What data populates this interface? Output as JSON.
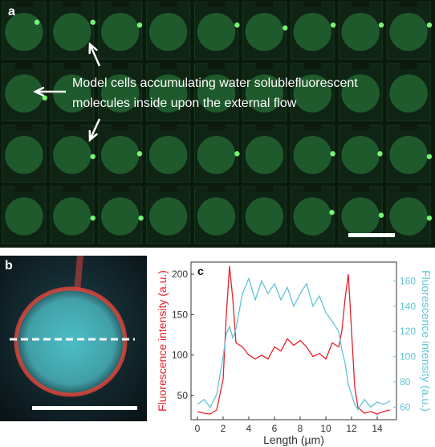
{
  "panel_a": {
    "letter": "a",
    "annotation_line1": "Model cells accumulating water solublefluorescent",
    "annotation_line2": "molecules inside upon the external flow",
    "colors": {
      "background": "#0c1a0e",
      "cell": "#1f5a2c",
      "trap_gap": "#0c1a0e",
      "spot": "#7dff7a",
      "annotation": "#ffffff"
    }
  },
  "panel_b": {
    "letter": "b",
    "colors": {
      "membrane": "#d9443a",
      "interior": "#4fc4cc",
      "dashed_line": "#ffffff",
      "scale_bar": "#ffffff"
    }
  },
  "chart_data": {
    "type": "line",
    "letter": "c",
    "xlabel": "Length (µm)",
    "ylabel_left": "Fluorescence intensity (a.u.)",
    "ylabel_right": "Fluorescence intensity (a.u.)",
    "xlim": [
      -0.5,
      15.5
    ],
    "ylim_left": [
      20,
      215
    ],
    "ylim_right": [
      50,
      175
    ],
    "x_ticks": [
      "0",
      "2",
      "4",
      "6",
      "8",
      "10",
      "12",
      "14"
    ],
    "y_ticks_left": [
      "50",
      "100",
      "150",
      "200"
    ],
    "y_ticks_right": [
      "60",
      "80",
      "100",
      "120",
      "140",
      "160"
    ],
    "grid": false,
    "series": [
      {
        "axis": "left",
        "color": "#e8202a",
        "x": [
          0.0,
          0.5,
          1.0,
          1.5,
          2.0,
          2.25,
          2.5,
          2.75,
          3.0,
          3.5,
          4.0,
          4.5,
          5.0,
          5.5,
          6.0,
          6.5,
          7.0,
          7.5,
          8.0,
          8.5,
          9.0,
          9.5,
          10.0,
          10.5,
          11.0,
          11.25,
          11.5,
          11.75,
          12.0,
          12.25,
          12.5,
          13.0,
          13.5,
          14.0,
          14.5,
          15.0
        ],
        "y": [
          30,
          28,
          27,
          32,
          70,
          150,
          210,
          170,
          115,
          110,
          100,
          95,
          100,
          95,
          110,
          105,
          120,
          112,
          118,
          110,
          98,
          102,
          95,
          115,
          110,
          130,
          170,
          200,
          130,
          60,
          35,
          28,
          30,
          27,
          30,
          32
        ]
      },
      {
        "axis": "right",
        "color": "#62c4d6",
        "x": [
          0.0,
          0.5,
          1.0,
          1.5,
          2.0,
          2.25,
          2.5,
          2.75,
          3.0,
          3.5,
          4.0,
          4.5,
          5.0,
          5.5,
          6.0,
          6.5,
          7.0,
          7.5,
          8.0,
          8.5,
          9.0,
          9.5,
          10.0,
          10.5,
          11.0,
          11.25,
          11.5,
          11.75,
          12.0,
          12.25,
          12.5,
          13.0,
          13.5,
          14.0,
          14.5,
          15.0
        ],
        "y": [
          62,
          66,
          60,
          70,
          100,
          118,
          124,
          115,
          122,
          150,
          162,
          145,
          160,
          150,
          158,
          145,
          155,
          140,
          150,
          158,
          140,
          148,
          135,
          128,
          120,
          105,
          95,
          78,
          70,
          62,
          58,
          66,
          60,
          64,
          62,
          65
        ]
      }
    ]
  }
}
